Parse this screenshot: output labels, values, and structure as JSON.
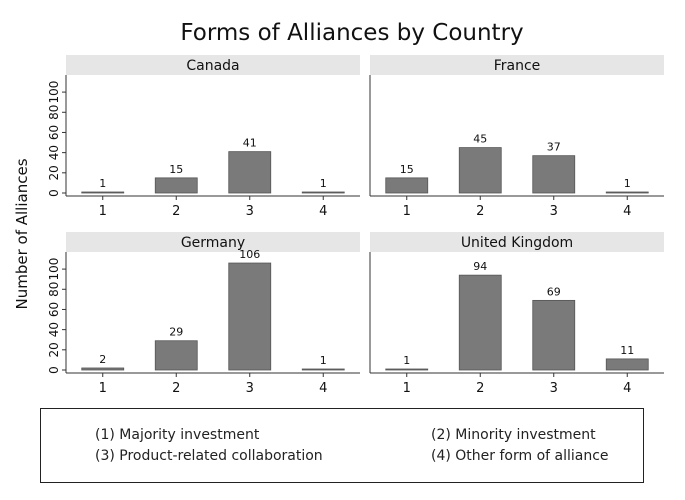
{
  "chart_data": {
    "type": "bar",
    "title": "Forms of Alliances by Country",
    "ylabel": "Number of Alliances",
    "xlabel": "",
    "ylim": [
      0,
      110
    ],
    "yticks": [
      0,
      20,
      40,
      60,
      80,
      100
    ],
    "categories": [
      "1",
      "2",
      "3",
      "4"
    ],
    "grid": false,
    "bar_color": "#7a7a7a",
    "panel_header_color": "#e6e6e6",
    "panels": [
      {
        "name": "Canada",
        "values": [
          1,
          15,
          41,
          1
        ]
      },
      {
        "name": "France",
        "values": [
          15,
          45,
          37,
          1
        ]
      },
      {
        "name": "Germany",
        "values": [
          2,
          29,
          106,
          1
        ]
      },
      {
        "name": "United Kingdom",
        "values": [
          1,
          94,
          69,
          11
        ]
      }
    ],
    "legend": {
      "placement": "bottom",
      "entries": [
        "(1) Majority investment",
        "(2) Minority investment",
        "(3) Product-related collaboration",
        "(4) Other form of alliance"
      ]
    }
  }
}
